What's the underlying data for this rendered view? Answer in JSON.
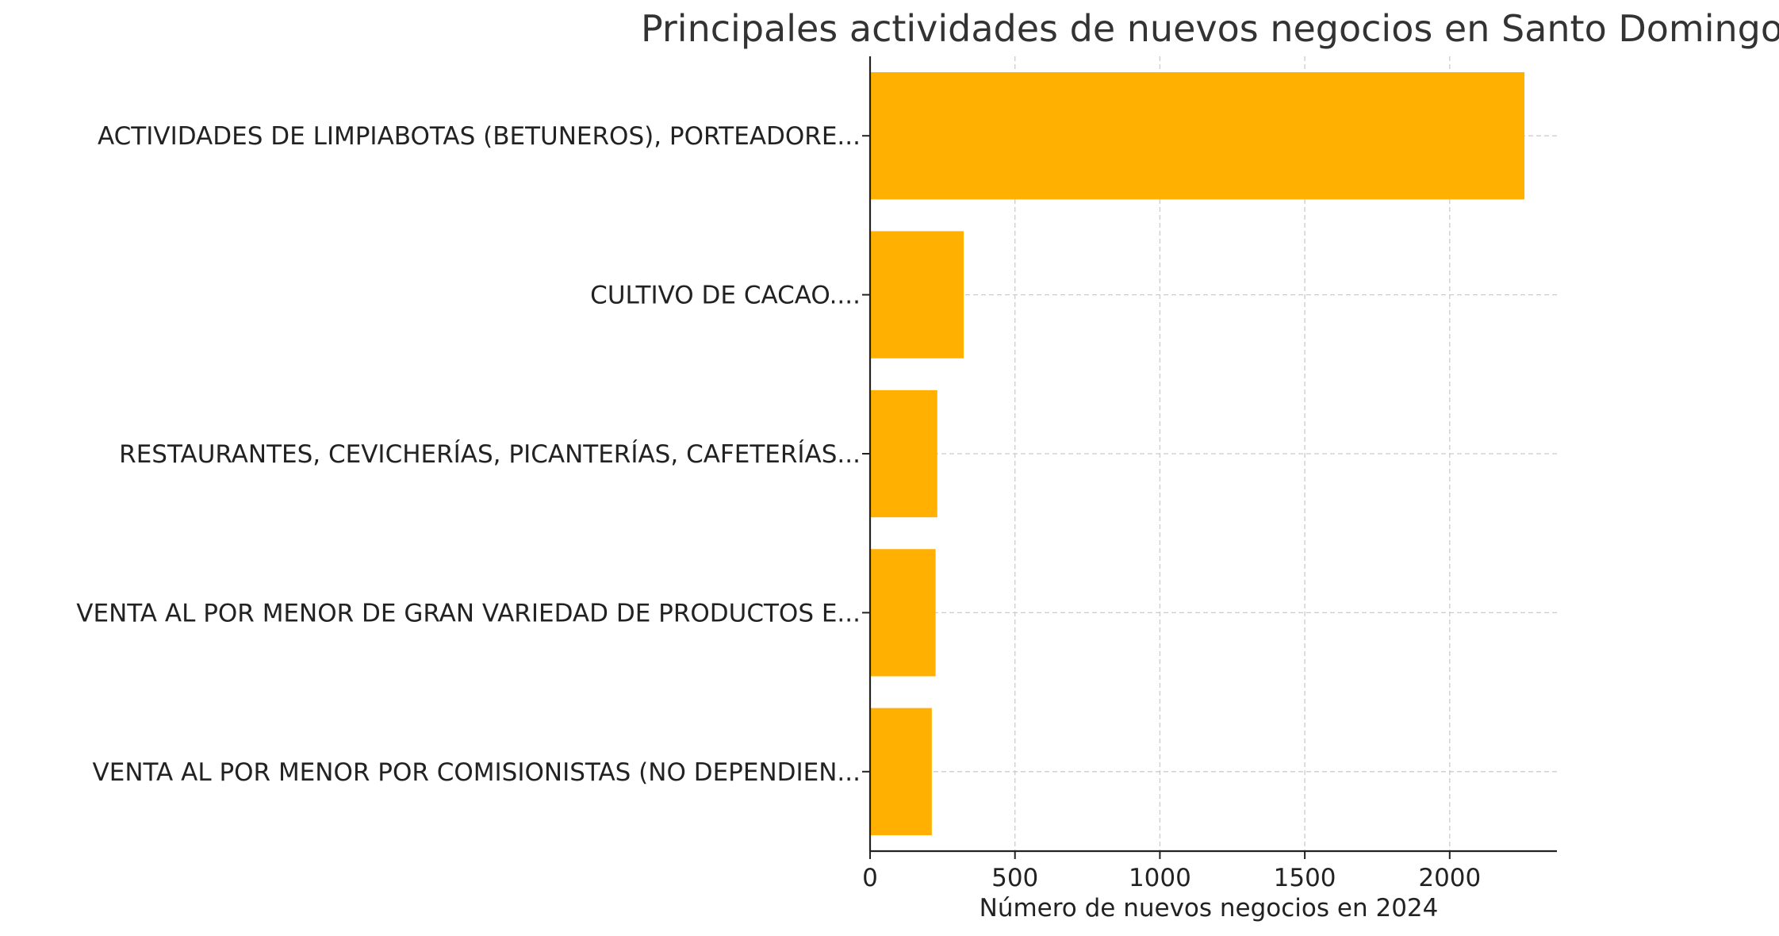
{
  "chart_data": {
    "type": "bar",
    "orientation": "horizontal",
    "title": "Principales actividades de nuevos negocios en Santo Domingo",
    "xlabel": "Número de nuevos negocios en 2024",
    "ylabel": "",
    "categories": [
      "ACTIVIDADES DE LIMPIABOTAS (BETUNEROS), PORTEADORE...",
      "CULTIVO DE CACAO....",
      "RESTAURANTES, CEVICHERÍAS, PICANTERÍAS, CAFETERÍAS...",
      "VENTA AL POR MENOR DE GRAN VARIEDAD DE PRODUCTOS E...",
      "VENTA AL POR MENOR POR COMISIONISTAS (NO DEPENDIEN..."
    ],
    "values": [
      2258,
      323,
      232,
      226,
      213
    ],
    "xlim": [
      0,
      2370
    ],
    "xticks": [
      0,
      500,
      1000,
      1500,
      2000
    ],
    "grid": true,
    "legend": "none",
    "bar_color": "#FFB000",
    "grid_color": "#cccccc"
  }
}
